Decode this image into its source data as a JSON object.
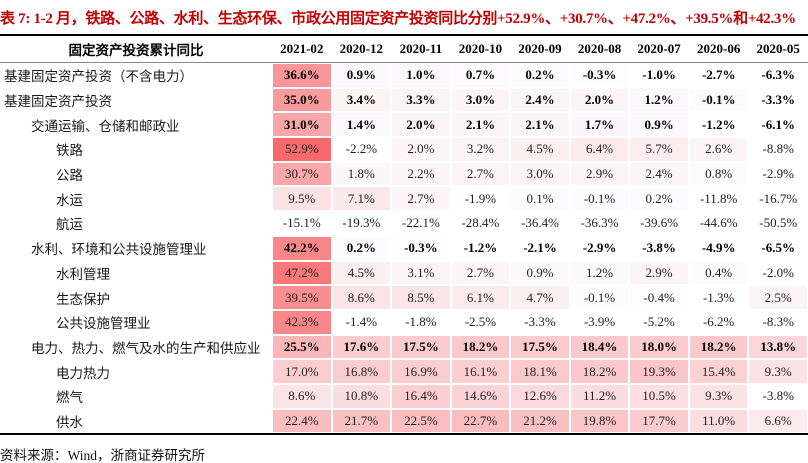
{
  "title": "表 7: 1-2 月，铁路、公路、水利、生态环保、市政公用固定资产投资同比分别+52.9%、+30.7%、+47.2%、+39.5%和+42.3%",
  "source": "资料来源：Wind，浙商证券研究所",
  "colors": {
    "title_red": "#C00000",
    "heat_max_red": "#F8696B",
    "heat_mid_white": "#FCFCFF",
    "heat_min_blue": "#5A8AC6",
    "table_border": "#000000"
  },
  "chart_data": {
    "type": "heatmap",
    "title": "固定资产投资累计同比",
    "unit": "%",
    "value_format": "one_decimal_percent",
    "legend_position": "none",
    "grid": false,
    "scale": {
      "red_at": 52.9,
      "white_at": 0,
      "blue_at": -50.5
    },
    "columns": [
      "2021-02",
      "2020-12",
      "2020-11",
      "2020-10",
      "2020-09",
      "2020-08",
      "2020-07",
      "2020-06",
      "2020-05"
    ],
    "rows": [
      {
        "label": "基建固定资产投资（不含电力）",
        "indent": 0,
        "bold": true,
        "values": [
          36.6,
          0.9,
          1.0,
          0.7,
          0.2,
          -0.3,
          -1.0,
          -2.7,
          -6.3
        ]
      },
      {
        "label": "基建固定资产投资",
        "indent": 0,
        "bold": true,
        "values": [
          35.0,
          3.4,
          3.3,
          3.0,
          2.4,
          2.0,
          1.2,
          -0.1,
          -3.3
        ]
      },
      {
        "label": "交通运输、仓储和邮政业",
        "indent": 1,
        "bold": true,
        "values": [
          31.0,
          1.4,
          2.0,
          2.1,
          2.1,
          1.7,
          0.9,
          -1.2,
          -6.1
        ]
      },
      {
        "label": "铁路",
        "indent": 2,
        "bold": false,
        "values": [
          52.9,
          -2.2,
          2.0,
          3.2,
          4.5,
          6.4,
          5.7,
          2.6,
          -8.8
        ]
      },
      {
        "label": "公路",
        "indent": 2,
        "bold": false,
        "values": [
          30.7,
          1.8,
          2.2,
          2.7,
          3.0,
          2.9,
          2.4,
          0.8,
          -2.9
        ]
      },
      {
        "label": "水运",
        "indent": 2,
        "bold": false,
        "values": [
          9.5,
          7.1,
          2.7,
          -1.9,
          0.1,
          -0.1,
          0.2,
          -11.8,
          -16.7
        ]
      },
      {
        "label": "航运",
        "indent": 2,
        "bold": false,
        "values": [
          -15.1,
          -19.3,
          -22.1,
          -28.4,
          -36.4,
          -36.3,
          -39.6,
          -44.6,
          -50.5
        ]
      },
      {
        "label": "水利、环境和公共设施管理业",
        "indent": 1,
        "bold": true,
        "values": [
          42.2,
          0.2,
          -0.3,
          -1.2,
          -2.1,
          -2.9,
          -3.8,
          -4.9,
          -6.5
        ]
      },
      {
        "label": "水利管理",
        "indent": 2,
        "bold": false,
        "values": [
          47.2,
          4.5,
          3.1,
          2.7,
          0.9,
          1.2,
          2.9,
          0.4,
          -2.0
        ]
      },
      {
        "label": "生态保护",
        "indent": 2,
        "bold": false,
        "values": [
          39.5,
          8.6,
          8.5,
          6.1,
          4.7,
          -0.1,
          -0.4,
          -1.3,
          2.5
        ]
      },
      {
        "label": "公共设施管理业",
        "indent": 2,
        "bold": false,
        "values": [
          42.3,
          -1.4,
          -1.8,
          -2.5,
          -3.3,
          -3.9,
          -5.2,
          -6.2,
          -8.3
        ]
      },
      {
        "label": "电力、热力、燃气及水的生产和供应业",
        "indent": 1,
        "bold": true,
        "values": [
          25.5,
          17.6,
          17.5,
          18.2,
          17.5,
          18.4,
          18.0,
          18.2,
          13.8
        ]
      },
      {
        "label": "电力热力",
        "indent": 2,
        "bold": false,
        "values": [
          17.0,
          16.8,
          16.9,
          16.1,
          18.1,
          18.2,
          19.3,
          15.4,
          9.3
        ]
      },
      {
        "label": "燃气",
        "indent": 2,
        "bold": false,
        "values": [
          8.6,
          10.8,
          16.4,
          14.6,
          12.6,
          11.2,
          10.5,
          9.3,
          -3.8
        ]
      },
      {
        "label": "供水",
        "indent": 2,
        "bold": false,
        "values": [
          22.4,
          21.7,
          22.5,
          22.7,
          21.2,
          19.8,
          17.7,
          11.0,
          6.6
        ]
      }
    ]
  }
}
